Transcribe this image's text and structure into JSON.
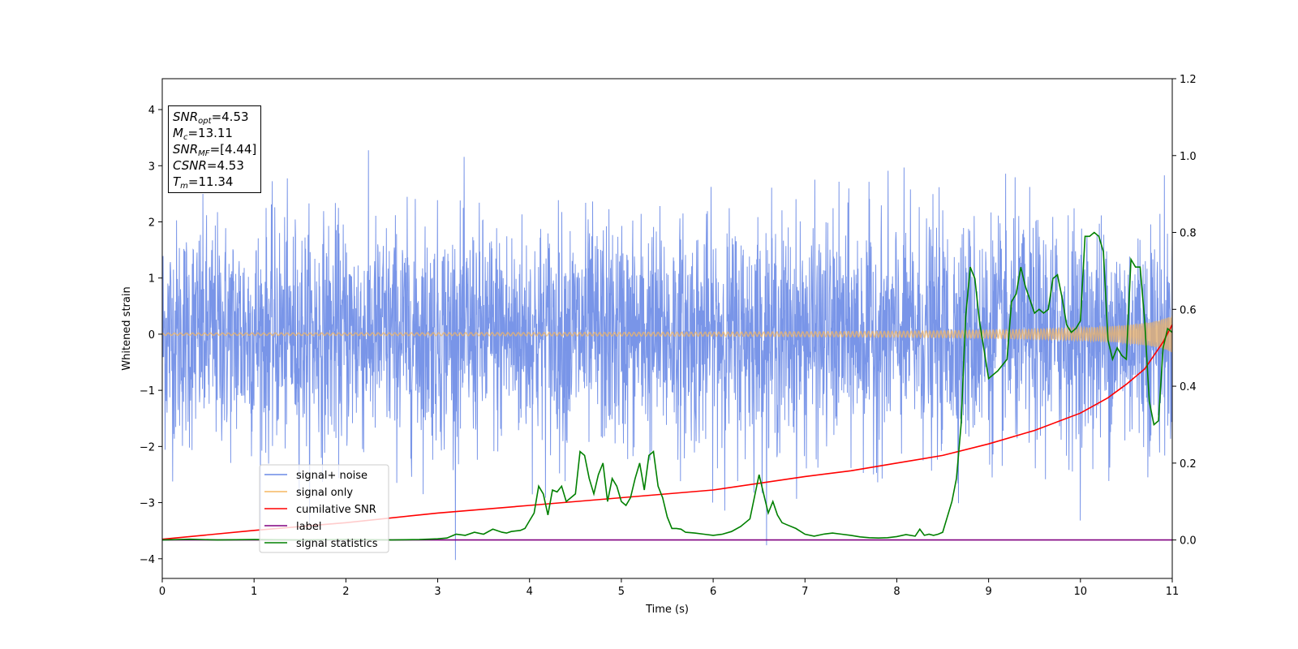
{
  "chart_data": {
    "type": "line",
    "xlabel": "Time (s)",
    "ylabel": "Whitened strain",
    "xlim": [
      0,
      11
    ],
    "ylim": [
      -4.35,
      4.55
    ],
    "y2lim": [
      -0.1,
      1.2
    ],
    "x_ticks": [
      "0",
      "1",
      "2",
      "3",
      "4",
      "5",
      "6",
      "7",
      "8",
      "9",
      "10",
      "11"
    ],
    "y_ticks": [
      "4",
      "3",
      "2",
      "1",
      "0",
      "−1",
      "−2",
      "−3",
      "−4"
    ],
    "y2_ticks": [
      "1.2",
      "1.0",
      "0.8",
      "0.6",
      "0.4",
      "0.2",
      "0.0"
    ],
    "legend_position": "lower-left",
    "grid": false,
    "stats": [
      {
        "sym": "SNR",
        "sub": "opt",
        "val": "=4.53"
      },
      {
        "sym": "M",
        "sub": "c",
        "val": "=13.11"
      },
      {
        "sym": "SNR",
        "sub": "MF",
        "val": "=[4.44]"
      },
      {
        "sym": "CSNR",
        "sub": "",
        "val": "=4.53"
      },
      {
        "sym": "T",
        "sub": "m",
        "val": "=11.34"
      }
    ],
    "series": [
      {
        "name": "signal+ noise",
        "color": "#6a8ae6",
        "axis": "left",
        "kind": "noise",
        "amplitude": 1.0
      },
      {
        "name": "signal only",
        "color": "#f5b761",
        "axis": "left",
        "kind": "chirp",
        "t_merge": 11.34
      },
      {
        "name": "cumilative SNR",
        "color": "#ff0000",
        "axis": "right",
        "x": [
          0,
          1,
          2,
          3,
          4,
          5,
          6,
          7,
          7.5,
          8,
          8.5,
          9,
          9.5,
          10,
          10.3,
          10.5,
          10.7,
          10.8,
          10.9,
          11.0
        ],
        "y": [
          0.002,
          0.025,
          0.045,
          0.07,
          0.09,
          0.11,
          0.13,
          0.165,
          0.18,
          0.2,
          0.22,
          0.25,
          0.285,
          0.33,
          0.37,
          0.405,
          0.445,
          0.48,
          0.515,
          0.56
        ]
      },
      {
        "name": "label",
        "color": "#800080",
        "axis": "right",
        "x": [
          0,
          11
        ],
        "y": [
          0,
          0
        ]
      },
      {
        "name": "signal statistics",
        "color": "#008000",
        "axis": "right",
        "x": [
          0,
          0.3,
          0.6,
          1.0,
          1.5,
          2.0,
          2.5,
          2.8,
          3.0,
          3.1,
          3.2,
          3.3,
          3.4,
          3.5,
          3.6,
          3.7,
          3.75,
          3.8,
          3.9,
          3.95,
          4.0,
          4.05,
          4.1,
          4.15,
          4.2,
          4.25,
          4.3,
          4.35,
          4.4,
          4.45,
          4.5,
          4.55,
          4.6,
          4.65,
          4.7,
          4.75,
          4.8,
          4.85,
          4.9,
          4.95,
          5.0,
          5.05,
          5.1,
          5.15,
          5.2,
          5.25,
          5.3,
          5.35,
          5.4,
          5.45,
          5.5,
          5.55,
          5.6,
          5.65,
          5.7,
          5.8,
          5.9,
          6.0,
          6.1,
          6.2,
          6.3,
          6.4,
          6.5,
          6.55,
          6.6,
          6.65,
          6.7,
          6.75,
          6.8,
          6.9,
          7.0,
          7.1,
          7.2,
          7.3,
          7.4,
          7.5,
          7.6,
          7.7,
          7.8,
          7.9,
          8.0,
          8.1,
          8.2,
          8.25,
          8.3,
          8.35,
          8.4,
          8.45,
          8.5,
          8.55,
          8.6,
          8.65,
          8.7,
          8.75,
          8.8,
          8.85,
          8.9,
          9.0,
          9.1,
          9.2,
          9.25,
          9.3,
          9.35,
          9.4,
          9.5,
          9.55,
          9.6,
          9.65,
          9.7,
          9.75,
          9.8,
          9.85,
          9.9,
          9.95,
          10.0,
          10.05,
          10.1,
          10.15,
          10.2,
          10.25,
          10.3,
          10.35,
          10.4,
          10.45,
          10.5,
          10.55,
          10.6,
          10.65,
          10.7,
          10.75,
          10.8,
          10.85,
          10.9,
          10.95,
          11.0
        ],
        "y": [
          0.0,
          0.002,
          0.0,
          0.001,
          0.0,
          0.001,
          0.0,
          0.001,
          0.003,
          0.005,
          0.015,
          0.012,
          0.02,
          0.015,
          0.028,
          0.02,
          0.018,
          0.022,
          0.025,
          0.03,
          0.05,
          0.07,
          0.14,
          0.12,
          0.065,
          0.13,
          0.125,
          0.14,
          0.1,
          0.11,
          0.12,
          0.23,
          0.22,
          0.16,
          0.12,
          0.17,
          0.2,
          0.1,
          0.16,
          0.14,
          0.1,
          0.09,
          0.11,
          0.16,
          0.2,
          0.13,
          0.22,
          0.23,
          0.14,
          0.11,
          0.06,
          0.03,
          0.03,
          0.028,
          0.02,
          0.018,
          0.015,
          0.012,
          0.015,
          0.022,
          0.035,
          0.055,
          0.17,
          0.12,
          0.07,
          0.1,
          0.065,
          0.045,
          0.04,
          0.03,
          0.015,
          0.01,
          0.015,
          0.018,
          0.015,
          0.012,
          0.008,
          0.006,
          0.005,
          0.006,
          0.009,
          0.014,
          0.01,
          0.028,
          0.012,
          0.015,
          0.012,
          0.015,
          0.02,
          0.06,
          0.1,
          0.16,
          0.3,
          0.58,
          0.71,
          0.68,
          0.57,
          0.42,
          0.44,
          0.47,
          0.62,
          0.64,
          0.71,
          0.66,
          0.59,
          0.6,
          0.59,
          0.6,
          0.68,
          0.69,
          0.63,
          0.56,
          0.54,
          0.55,
          0.57,
          0.79,
          0.79,
          0.8,
          0.79,
          0.75,
          0.52,
          0.47,
          0.5,
          0.48,
          0.47,
          0.73,
          0.71,
          0.71,
          0.57,
          0.36,
          0.3,
          0.31,
          0.5,
          0.55,
          0.54
        ]
      }
    ]
  }
}
